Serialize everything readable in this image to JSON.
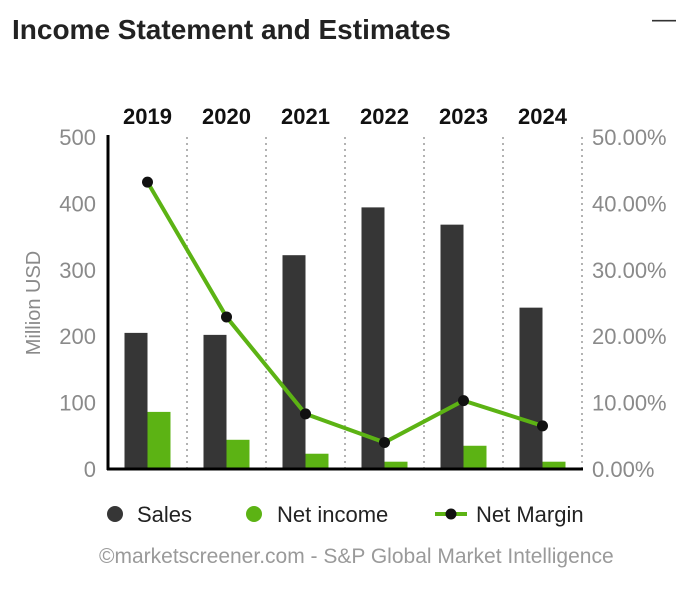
{
  "header": {
    "title": "Income Statement and Estimates",
    "minimize_label": "—"
  },
  "colors": {
    "sales": "#363636",
    "net_income": "#5cb314",
    "net_margin_line": "#5cb314",
    "net_margin_marker": "#111111",
    "axis_text": "#8a8a8a",
    "source_text": "#9a9a9a"
  },
  "chart_data": {
    "type": "bar",
    "title": "Income Statement and Estimates",
    "categories": [
      "2019",
      "2020",
      "2021",
      "2022",
      "2023",
      "2024"
    ],
    "series": [
      {
        "name": "Sales",
        "type": "bar",
        "axis": "left",
        "values": [
          205,
          202,
          322,
          394,
          368,
          243
        ]
      },
      {
        "name": "Net income",
        "type": "bar",
        "axis": "left",
        "values": [
          86,
          44,
          23,
          11,
          35,
          11
        ]
      },
      {
        "name": "Net Margin",
        "type": "line",
        "axis": "right",
        "values": [
          43.2,
          22.9,
          8.3,
          4.0,
          10.3,
          6.5
        ]
      }
    ],
    "ylabel": "Million USD",
    "ylim": [
      0,
      500
    ],
    "yticks": [
      "0",
      "100",
      "200",
      "300",
      "400",
      "500"
    ],
    "y2lim": [
      0,
      50
    ],
    "y2ticks": [
      "0.00%",
      "10.00%",
      "20.00%",
      "30.00%",
      "40.00%",
      "50.00%"
    ],
    "legend": [
      "Sales",
      "Net income",
      "Net Margin"
    ],
    "legend_position": "bottom",
    "grid": "vertical-dotted-separators"
  },
  "footer": {
    "source": "©marketscreener.com - S&P Global Market Intelligence"
  }
}
